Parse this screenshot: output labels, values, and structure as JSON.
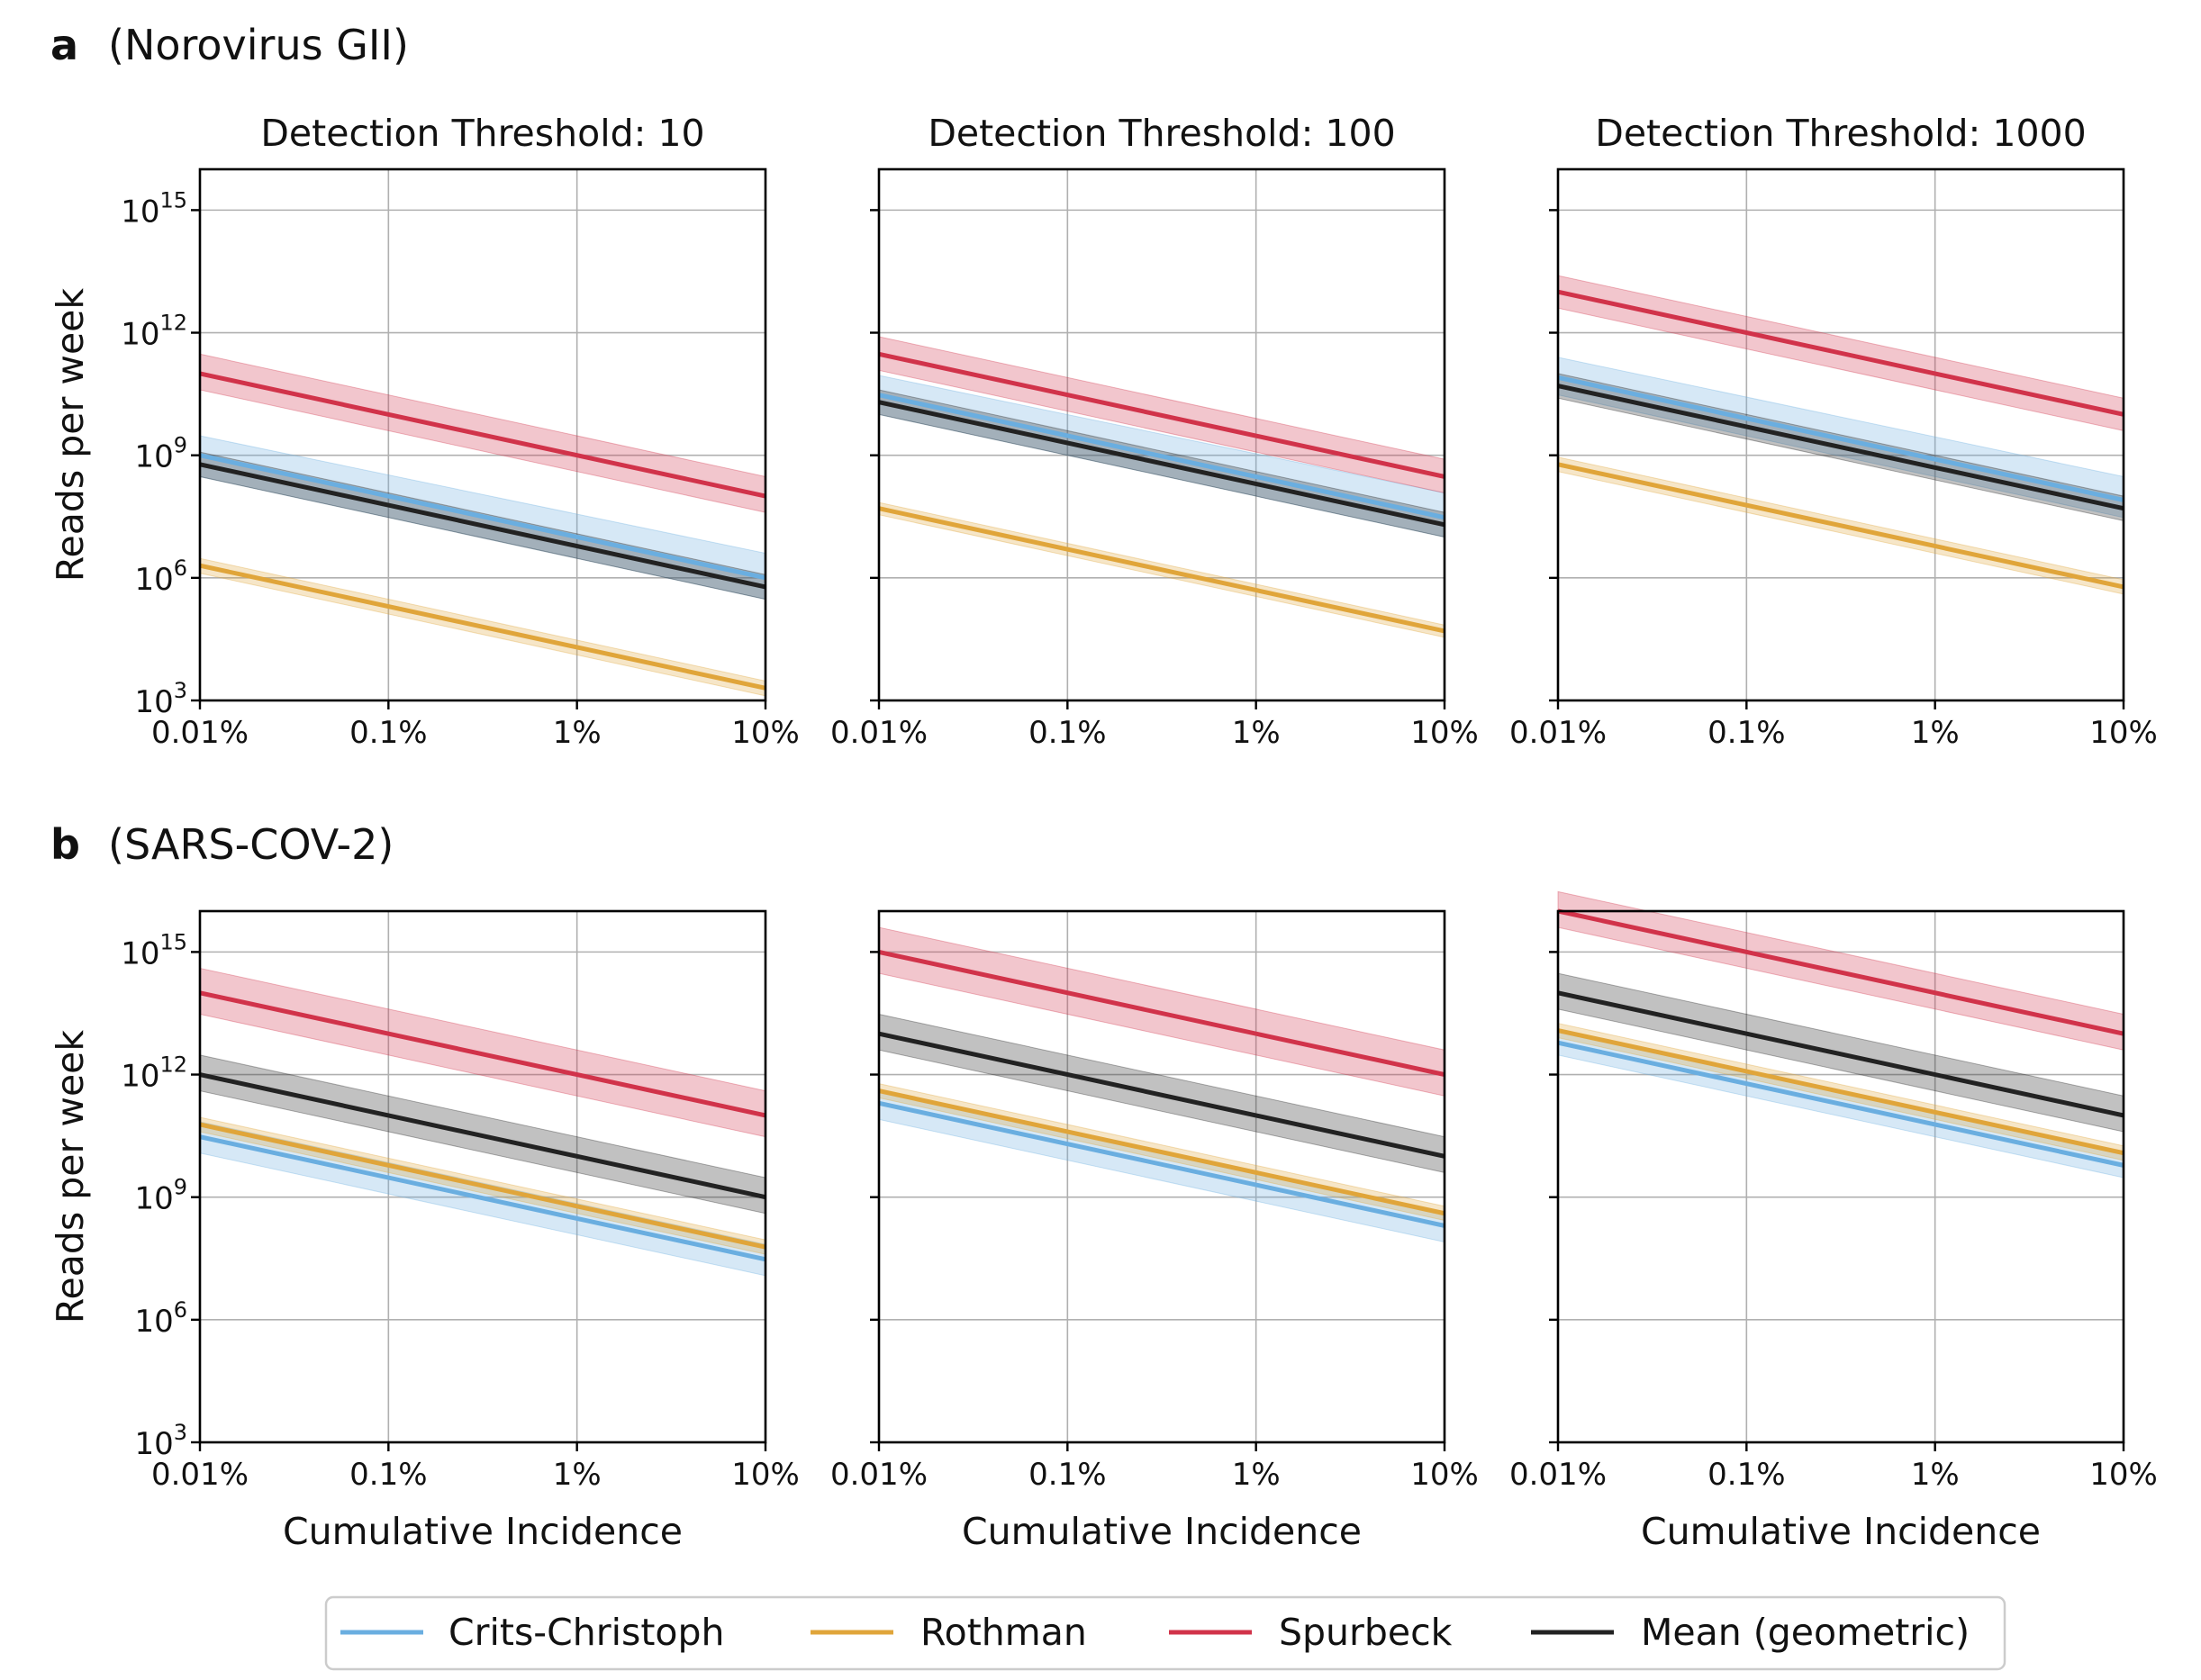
{
  "panels": [
    {
      "letter": "a",
      "title": "(Norovirus GII)"
    },
    {
      "letter": "b",
      "title": "(SARS-COV-2)"
    }
  ],
  "axes": {
    "xlabel": "Cumulative Incidence",
    "ylabel": "Reads per week",
    "x_ticks": [
      "0.01%",
      "0.1%",
      "1%",
      "10%"
    ],
    "y_ticks": [
      {
        "base": "10",
        "exp": "3"
      },
      {
        "base": "10",
        "exp": "6"
      },
      {
        "base": "10",
        "exp": "9"
      },
      {
        "base": "10",
        "exp": "12"
      },
      {
        "base": "10",
        "exp": "15"
      }
    ]
  },
  "legend": [
    {
      "label": "Crits-Christoph",
      "color": "#6aaee0"
    },
    {
      "label": "Rothman",
      "color": "#e0a53a"
    },
    {
      "label": "Spurbeck",
      "color": "#d1334a"
    },
    {
      "label": "Mean (geometric)",
      "color": "#222222"
    }
  ],
  "chart_data": [
    {
      "type": "line",
      "panel": "a",
      "title": "Detection Threshold: 10",
      "xlabel": "",
      "ylabel": "Reads per week",
      "x": [
        0.0001,
        0.1
      ],
      "xscale": "log",
      "yscale": "log",
      "ylim": [
        1000,
        1e+16
      ],
      "grid": true,
      "series": [
        {
          "name": "Crits-Christoph",
          "values": [
            1000000000.0,
            1000000.0
          ],
          "band": [
            [
              3000000000.0,
              4000000.0
            ],
            [
              300000000.0,
              300000.0
            ]
          ]
        },
        {
          "name": "Rothman",
          "values": [
            2000000.0,
            2000.0
          ],
          "band": [
            [
              3000000.0,
              3000.0
            ],
            [
              1300000.0,
              1300.0
            ]
          ]
        },
        {
          "name": "Spurbeck",
          "values": [
            100000000000.0,
            100000000.0
          ],
          "band": [
            [
              300000000000.0,
              300000000.0
            ],
            [
              40000000000.0,
              40000000.0
            ]
          ]
        },
        {
          "name": "Mean (geometric)",
          "values": [
            600000000.0,
            600000.0
          ],
          "band": [
            [
              1200000000.0,
              1200000.0
            ],
            [
              300000000.0,
              300000.0
            ]
          ]
        }
      ]
    },
    {
      "type": "line",
      "panel": "a",
      "title": "Detection Threshold: 100",
      "xlabel": "",
      "ylabel": "",
      "x": [
        0.0001,
        0.1
      ],
      "xscale": "log",
      "yscale": "log",
      "ylim": [
        1000,
        1e+16
      ],
      "grid": true,
      "series": [
        {
          "name": "Crits-Christoph",
          "values": [
            30000000000.0,
            30000000.0
          ],
          "band": [
            [
              90000000000.0,
              120000000.0
            ],
            [
              10000000000.0,
              10000000.0
            ]
          ]
        },
        {
          "name": "Rothman",
          "values": [
            50000000.0,
            50000.0
          ],
          "band": [
            [
              70000000.0,
              70000.0
            ],
            [
              35000000.0,
              35000.0
            ]
          ]
        },
        {
          "name": "Spurbeck",
          "values": [
            300000000000.0,
            300000000.0
          ],
          "band": [
            [
              800000000000.0,
              800000000.0
            ],
            [
              120000000000.0,
              120000000.0
            ]
          ]
        },
        {
          "name": "Mean (geometric)",
          "values": [
            20000000000.0,
            20000000.0
          ],
          "band": [
            [
              40000000000.0,
              40000000.0
            ],
            [
              10000000000.0,
              10000000.0
            ]
          ]
        }
      ]
    },
    {
      "type": "line",
      "panel": "a",
      "title": "Detection Threshold: 1000",
      "xlabel": "",
      "ylabel": "",
      "x": [
        0.0001,
        0.1
      ],
      "xscale": "log",
      "yscale": "log",
      "ylim": [
        1000,
        1e+16
      ],
      "grid": true,
      "series": [
        {
          "name": "Crits-Christoph",
          "values": [
            80000000000.0,
            80000000.0
          ],
          "band": [
            [
              250000000000.0,
              300000000.0
            ],
            [
              30000000000.0,
              30000000.0
            ]
          ]
        },
        {
          "name": "Rothman",
          "values": [
            600000000.0,
            600000.0
          ],
          "band": [
            [
              900000000.0,
              900000.0
            ],
            [
              400000000.0,
              400000.0
            ]
          ]
        },
        {
          "name": "Spurbeck",
          "values": [
            10000000000000.0,
            10000000000.0
          ],
          "band": [
            [
              25000000000000.0,
              25000000000.0
            ],
            [
              4000000000000.0,
              4000000000.0
            ]
          ]
        },
        {
          "name": "Mean (geometric)",
          "values": [
            50000000000.0,
            50000000.0
          ],
          "band": [
            [
              100000000000.0,
              100000000.0
            ],
            [
              25000000000.0,
              25000000.0
            ]
          ]
        }
      ]
    },
    {
      "type": "line",
      "panel": "b",
      "title": "",
      "xlabel": "Cumulative Incidence",
      "ylabel": "Reads per week",
      "x": [
        0.0001,
        0.1
      ],
      "xscale": "log",
      "yscale": "log",
      "ylim": [
        1000,
        1e+16
      ],
      "grid": true,
      "series": [
        {
          "name": "Crits-Christoph",
          "values": [
            30000000000.0,
            30000000.0
          ],
          "band": [
            [
              70000000000.0,
              70000000.0
            ],
            [
              12000000000.0,
              12000000.0
            ]
          ]
        },
        {
          "name": "Rothman",
          "values": [
            60000000000.0,
            60000000.0
          ],
          "band": [
            [
              90000000000.0,
              90000000.0
            ],
            [
              40000000000.0,
              40000000.0
            ]
          ]
        },
        {
          "name": "Spurbeck",
          "values": [
            100000000000000.0,
            100000000000.0
          ],
          "band": [
            [
              400000000000000.0,
              400000000000.0
            ],
            [
              30000000000000.0,
              30000000000.0
            ]
          ]
        },
        {
          "name": "Mean (geometric)",
          "values": [
            1000000000000.0,
            1000000000.0
          ],
          "band": [
            [
              3000000000000.0,
              3000000000.0
            ],
            [
              400000000000.0,
              400000000.0
            ]
          ]
        }
      ]
    },
    {
      "type": "line",
      "panel": "b",
      "title": "",
      "xlabel": "Cumulative Incidence",
      "ylabel": "",
      "x": [
        0.0001,
        0.1
      ],
      "xscale": "log",
      "yscale": "log",
      "ylim": [
        1000,
        1e+16
      ],
      "grid": true,
      "series": [
        {
          "name": "Crits-Christoph",
          "values": [
            200000000000.0,
            200000000.0
          ],
          "band": [
            [
              400000000000.0,
              400000000.0
            ],
            [
              80000000000.0,
              80000000.0
            ]
          ]
        },
        {
          "name": "Rothman",
          "values": [
            400000000000.0,
            400000000.0
          ],
          "band": [
            [
              600000000000.0,
              600000000.0
            ],
            [
              270000000000.0,
              270000000.0
            ]
          ]
        },
        {
          "name": "Spurbeck",
          "values": [
            1000000000000000.0,
            1000000000000.0
          ],
          "band": [
            [
              4000000000000000.0,
              4000000000000.0
            ],
            [
              300000000000000.0,
              300000000000.0
            ]
          ]
        },
        {
          "name": "Mean (geometric)",
          "values": [
            10000000000000.0,
            10000000000.0
          ],
          "band": [
            [
              30000000000000.0,
              30000000000.0
            ],
            [
              4000000000000.0,
              4000000000.0
            ]
          ]
        }
      ]
    },
    {
      "type": "line",
      "panel": "b",
      "title": "",
      "xlabel": "Cumulative Incidence",
      "ylabel": "",
      "x": [
        0.0001,
        0.1
      ],
      "xscale": "log",
      "yscale": "log",
      "ylim": [
        1000,
        1e+16
      ],
      "grid": true,
      "series": [
        {
          "name": "Crits-Christoph",
          "values": [
            6000000000000.0,
            6000000000.0
          ],
          "band": [
            [
              12000000000000.0,
              12000000000.0
            ],
            [
              3000000000000.0,
              3000000000.0
            ]
          ]
        },
        {
          "name": "Rothman",
          "values": [
            12000000000000.0,
            12000000000.0
          ],
          "band": [
            [
              18000000000000.0,
              18000000000.0
            ],
            [
              8000000000000.0,
              8000000000.0
            ]
          ]
        },
        {
          "name": "Spurbeck",
          "values": [
            1e+16,
            10000000000000.0
          ],
          "band": [
            [
              3e+16,
              30000000000000.0
            ],
            [
              4000000000000000.0,
              4000000000000.0
            ]
          ]
        },
        {
          "name": "Mean (geometric)",
          "values": [
            100000000000000.0,
            100000000000.0
          ],
          "band": [
            [
              300000000000000.0,
              300000000000.0
            ],
            [
              40000000000000.0,
              40000000000.0
            ]
          ]
        }
      ]
    }
  ]
}
